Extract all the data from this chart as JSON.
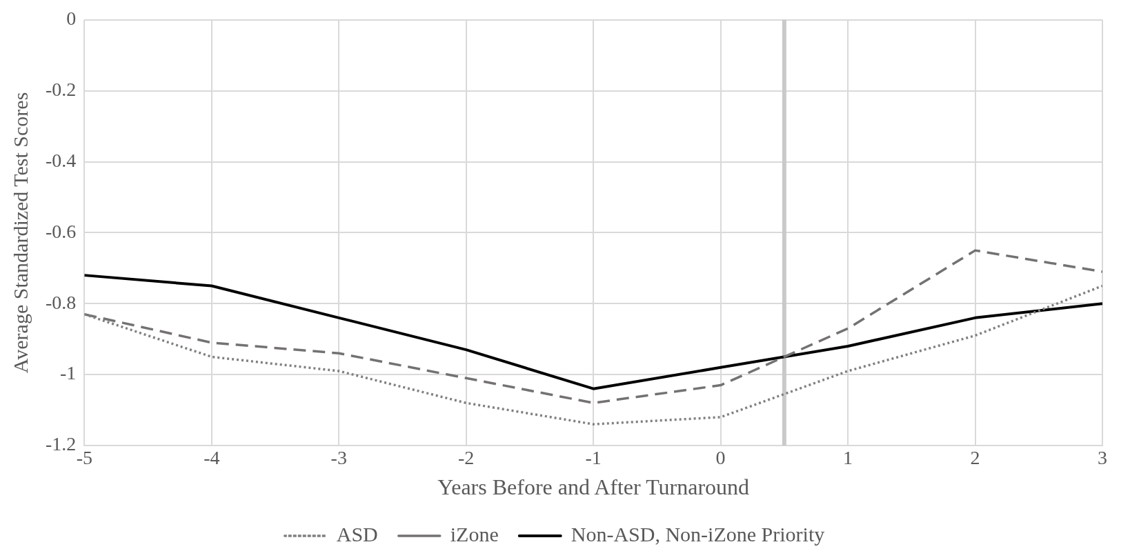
{
  "chart_data": {
    "type": "line",
    "xlabel": "Years Before and After Turnaround",
    "ylabel": "Average Standardized Test Scores",
    "x": [
      -5,
      -4,
      -3,
      -2,
      -1,
      0,
      1,
      2,
      3
    ],
    "series": [
      {
        "name": "ASD",
        "color": "#808080",
        "line_style": "dotted",
        "values": [
          -0.83,
          -0.95,
          -0.99,
          -1.08,
          -1.14,
          -1.12,
          -0.99,
          -0.89,
          -0.75
        ]
      },
      {
        "name": "iZone",
        "color": "#767171",
        "line_style": "dashed",
        "values": [
          -0.83,
          -0.91,
          -0.94,
          -1.01,
          -1.08,
          -1.03,
          -0.87,
          -0.65,
          -0.71
        ]
      },
      {
        "name": "Non-ASD, Non-iZone Priority",
        "color": "#000000",
        "line_style": "solid",
        "values": [
          -0.72,
          -0.75,
          -0.84,
          -0.93,
          -1.04,
          -0.98,
          -0.92,
          -0.84,
          -0.8
        ]
      }
    ],
    "xlim": [
      -5,
      3
    ],
    "xticks": [
      -5,
      -4,
      -3,
      -2,
      -1,
      0,
      1,
      2,
      3
    ],
    "ylim": [
      -1.2,
      0
    ],
    "yticks": [
      0,
      -0.2,
      -0.4,
      -0.6,
      -0.8,
      -1,
      -1.2
    ],
    "ref_lines": [
      {
        "axis": "x",
        "value": 0.5,
        "color": "#c9c9c9"
      }
    ],
    "grid": true,
    "legend": "bottom",
    "marker": "none"
  }
}
